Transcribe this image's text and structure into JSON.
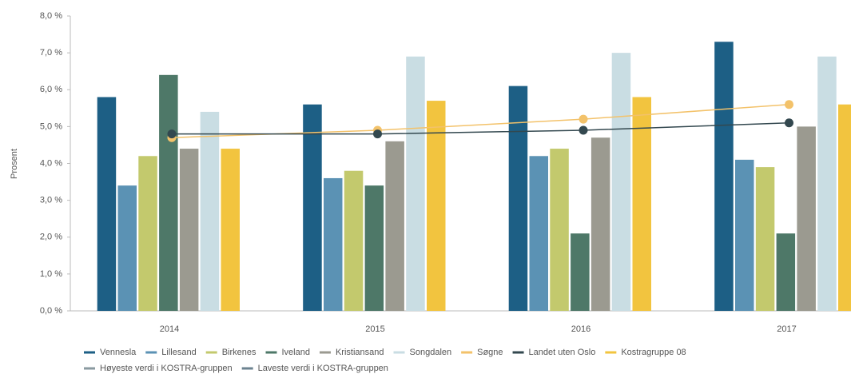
{
  "chart_data": {
    "type": "bar",
    "y_label": "Prosent",
    "categories": [
      "2014",
      "2015",
      "2016",
      "2017"
    ],
    "ylim": [
      0,
      8
    ],
    "yticks": [
      {
        "value": 0,
        "label": "0,0 %"
      },
      {
        "value": 1,
        "label": "1,0 %"
      },
      {
        "value": 2,
        "label": "2,0 %"
      },
      {
        "value": 3,
        "label": "3,0 %"
      },
      {
        "value": 4,
        "label": "4,0 %"
      },
      {
        "value": 5,
        "label": "5,0 %"
      },
      {
        "value": 6,
        "label": "6,0 %"
      },
      {
        "value": 7,
        "label": "7,0 %"
      },
      {
        "value": 8,
        "label": "8,0 %"
      }
    ],
    "grid": false,
    "legend": "bottom",
    "series": [
      {
        "name": "Vennesla",
        "color": "#1d5f85",
        "kind": "bar",
        "values": [
          5.8,
          5.6,
          6.1,
          7.3
        ]
      },
      {
        "name": "Lillesand",
        "color": "#5b92b4",
        "kind": "bar",
        "values": [
          3.4,
          3.6,
          4.2,
          4.1
        ]
      },
      {
        "name": "Birkenes",
        "color": "#c3c96d",
        "kind": "bar",
        "values": [
          4.2,
          3.8,
          4.4,
          3.9
        ]
      },
      {
        "name": "Iveland",
        "color": "#4e7868",
        "kind": "bar",
        "values": [
          6.4,
          3.4,
          2.1,
          2.1
        ]
      },
      {
        "name": "Kristiansand",
        "color": "#9b9a90",
        "kind": "bar",
        "values": [
          4.4,
          4.6,
          4.7,
          5.0
        ]
      },
      {
        "name": "Songdalen",
        "color": "#c9dde3",
        "kind": "bar",
        "values": [
          5.4,
          6.9,
          7.0,
          6.9
        ]
      },
      {
        "name": "Søgne",
        "color": "#f3c26a",
        "kind": "line",
        "values": [
          4.7,
          4.9,
          5.2,
          5.6
        ]
      },
      {
        "name": "Landet uten Oslo",
        "color": "#33484f",
        "kind": "line",
        "values": [
          4.8,
          4.8,
          4.9,
          5.1
        ]
      },
      {
        "name": "Kostragruppe 08",
        "color": "#f2c43f",
        "kind": "bar",
        "values": [
          4.4,
          5.7,
          5.8,
          5.6
        ]
      },
      {
        "name": "Høyeste verdi i KOSTRA-gruppen",
        "color": "#8a9aa0",
        "kind": "line",
        "values": [
          null,
          null,
          null,
          null
        ]
      },
      {
        "name": "Laveste verdi i KOSTRA-gruppen",
        "color": "#6c8390",
        "kind": "line",
        "values": [
          null,
          null,
          null,
          null
        ]
      }
    ]
  }
}
